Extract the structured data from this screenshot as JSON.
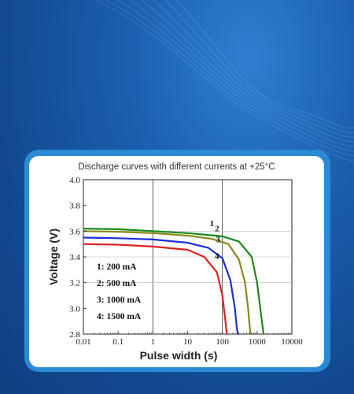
{
  "chart_data": {
    "type": "line",
    "title": "Discharge curves with different currents at +25°C",
    "xlabel": "Pulse width (s)",
    "ylabel": "Voltage (V)",
    "xscale": "log",
    "xlim": [
      0.01,
      10000
    ],
    "ylim": [
      2.8,
      4.0
    ],
    "xticks": [
      "0.01",
      "0.1",
      "1",
      "10",
      "100",
      "1000",
      "10000"
    ],
    "yticks": [
      "2.8",
      "3.0",
      "3.2",
      "3.4",
      "3.6",
      "3.8",
      "4.0"
    ],
    "grid": {
      "vertical": [
        1,
        100
      ],
      "horizontal": [
        3.6,
        3.4,
        3.2
      ]
    },
    "legend": {
      "placement": "lower-left",
      "entries": [
        "1: 200 mA",
        "2: 500 mA",
        "3: 1000 mA",
        "4: 1500 mA"
      ]
    },
    "series": [
      {
        "name": "1",
        "color": "#1a8a1a",
        "x": [
          0.01,
          0.1,
          1,
          10,
          100,
          300,
          700,
          1000,
          1300,
          1500,
          1550
        ],
        "y": [
          3.62,
          3.615,
          3.6,
          3.585,
          3.56,
          3.52,
          3.4,
          3.2,
          2.95,
          2.82,
          2.8
        ]
      },
      {
        "name": "2",
        "color": "#8a8a1a",
        "x": [
          0.01,
          0.1,
          1,
          10,
          50,
          150,
          300,
          450,
          550,
          620,
          650
        ],
        "y": [
          3.6,
          3.595,
          3.585,
          3.565,
          3.54,
          3.5,
          3.38,
          3.2,
          3.0,
          2.84,
          2.8
        ]
      },
      {
        "name": "3",
        "color": "#1a2fd6",
        "x": [
          0.01,
          0.1,
          1,
          10,
          40,
          100,
          170,
          230,
          260,
          280
        ],
        "y": [
          3.55,
          3.545,
          3.535,
          3.51,
          3.47,
          3.39,
          3.22,
          3.0,
          2.85,
          2.8
        ]
      },
      {
        "name": "4",
        "color": "#e02020",
        "x": [
          0.01,
          0.1,
          1,
          10,
          30,
          70,
          100,
          120,
          135
        ],
        "y": [
          3.5,
          3.495,
          3.48,
          3.455,
          3.4,
          3.28,
          3.1,
          2.92,
          2.8
        ]
      }
    ]
  }
}
